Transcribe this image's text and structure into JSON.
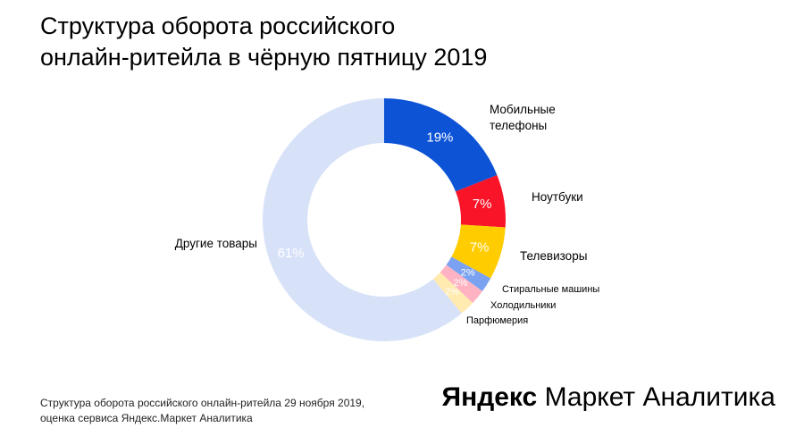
{
  "title": {
    "line1": "Структура оборота российского",
    "line2": "онлайн-ритейла в чёрную пятницу 2019"
  },
  "chart_data": {
    "type": "pie",
    "subtype": "donut",
    "title": "Структура оборота российского онлайн-ритейла в чёрную пятницу 2019",
    "inner_radius_ratio": 0.63,
    "start_angle_deg_from_top": 0,
    "direction": "clockwise",
    "segments": [
      {
        "label": "Мобильные телефоны",
        "value": 19,
        "pct_label": "19%",
        "color": "#0d53d6"
      },
      {
        "label": "Ноутбуки",
        "value": 7,
        "pct_label": "7%",
        "color": "#fa1428"
      },
      {
        "label": "Телевизоры",
        "value": 7,
        "pct_label": "7%",
        "color": "#ffcc00"
      },
      {
        "label": "Стиральные машины",
        "value": 2,
        "pct_label": "2%",
        "color": "#7ba2f0"
      },
      {
        "label": "Холодильники",
        "value": 2,
        "pct_label": "2%",
        "color": "#ffb3c2"
      },
      {
        "label": "Парфюмерия",
        "value": 2,
        "pct_label": "2%",
        "color": "#ffeab0"
      },
      {
        "label": "Другие товары",
        "value": 61,
        "pct_label": "61%",
        "color": "#d7e1f8"
      }
    ]
  },
  "footer": {
    "line1": "Структура оборота российского онлайн-ритейла 29 ноября 2019,",
    "line2": "оценка сервиса Яндекс.Маркет Аналитика"
  },
  "logo": {
    "brand": "Яндекс",
    "rest": "Маркет Аналитика"
  }
}
